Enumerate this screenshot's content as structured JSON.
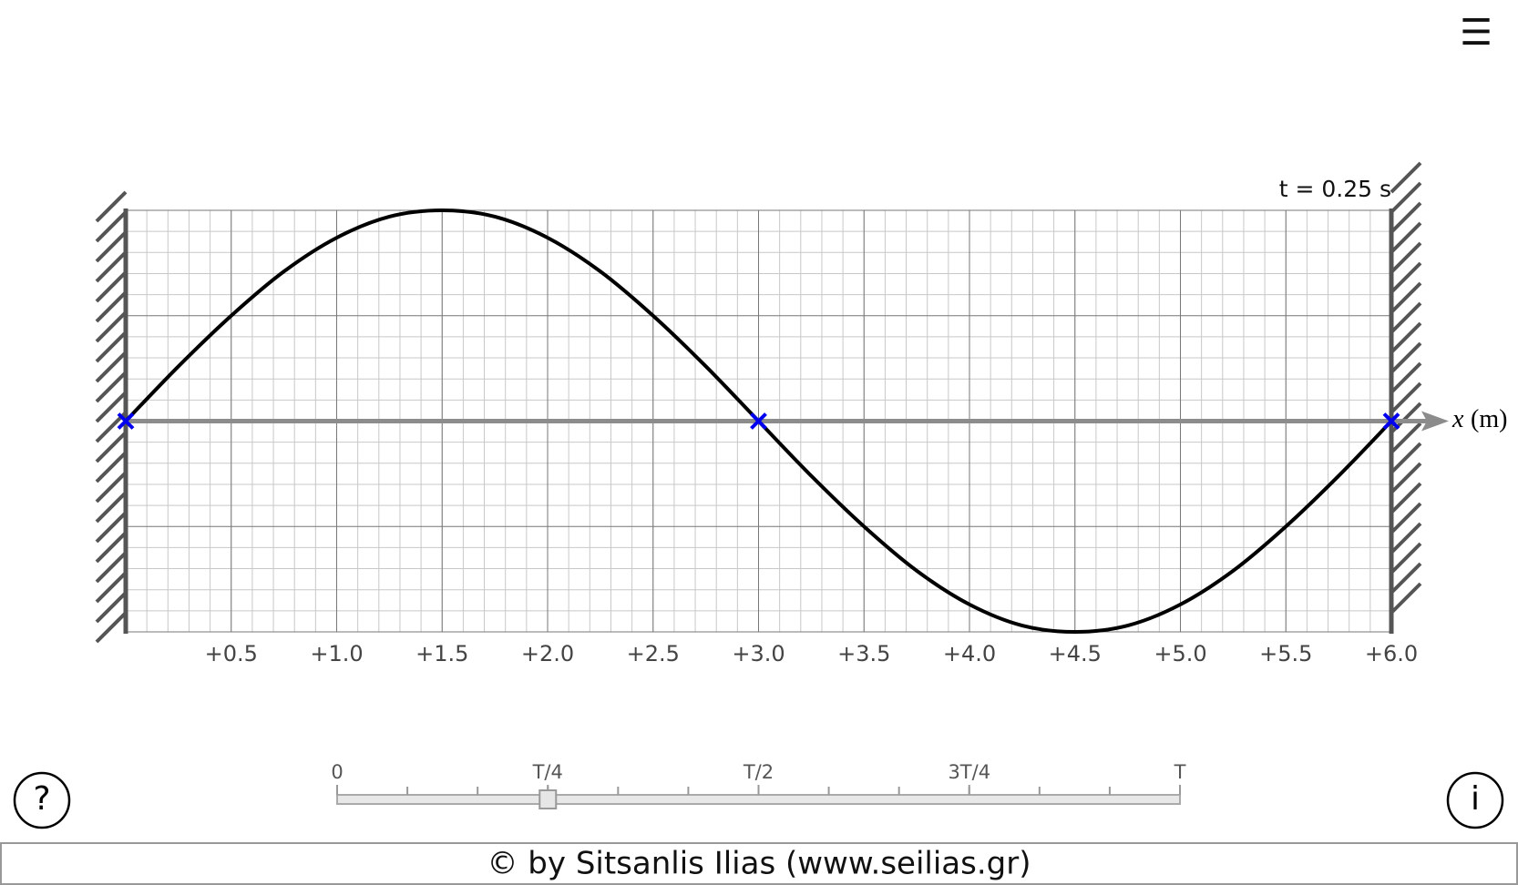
{
  "menu_icon": "☰",
  "help_icon": "?",
  "info_icon": "i",
  "footer": "© by Sitsanlis Ilias (www.seilias.gr)",
  "chart_data": {
    "type": "line",
    "annotation": "t = 0.25 s",
    "x_label": {
      "symbol": "x",
      "unit": "(m)"
    },
    "xlim": [
      0,
      6
    ],
    "ylim": [
      -1,
      1
    ],
    "xticks": [
      {
        "value": 0.5,
        "label": "+0.5"
      },
      {
        "value": 1.0,
        "label": "+1.0"
      },
      {
        "value": 1.5,
        "label": "+1.5"
      },
      {
        "value": 2.0,
        "label": "+2.0"
      },
      {
        "value": 2.5,
        "label": "+2.5"
      },
      {
        "value": 3.0,
        "label": "+3.0"
      },
      {
        "value": 3.5,
        "label": "+3.5"
      },
      {
        "value": 4.0,
        "label": "+4.0"
      },
      {
        "value": 4.5,
        "label": "+4.5"
      },
      {
        "value": 5.0,
        "label": "+5.0"
      },
      {
        "value": 5.5,
        "label": "+5.5"
      },
      {
        "value": 6.0,
        "label": "+6.0"
      }
    ],
    "grid": true,
    "x": [
      0,
      0.25,
      0.5,
      0.75,
      1,
      1.25,
      1.5,
      1.75,
      2,
      2.25,
      2.5,
      2.75,
      3,
      3.25,
      3.5,
      3.75,
      4,
      4.25,
      4.5,
      4.75,
      5,
      5.25,
      5.5,
      5.75,
      6
    ],
    "series": [
      {
        "color": "#000000",
        "values": [
          0,
          0.26,
          0.5,
          0.71,
          0.87,
          0.97,
          1,
          0.97,
          0.87,
          0.71,
          0.5,
          0.26,
          0,
          -0.26,
          -0.5,
          -0.71,
          -0.87,
          -0.97,
          -1,
          -0.97,
          -0.87,
          -0.71,
          -0.5,
          -0.26,
          0
        ]
      }
    ],
    "nodes": {
      "color": "#0000ee",
      "x": [
        0,
        3,
        6
      ],
      "values": [
        0,
        0,
        0
      ]
    }
  },
  "slider": {
    "ticks": [
      {
        "value": 0,
        "label": "0"
      },
      {
        "value": 0.25,
        "label": "T/4"
      },
      {
        "value": 0.5,
        "label": "T/2"
      },
      {
        "value": 0.75,
        "label": "3T/4"
      },
      {
        "value": 1,
        "label": "T"
      }
    ],
    "value": 0.25
  }
}
